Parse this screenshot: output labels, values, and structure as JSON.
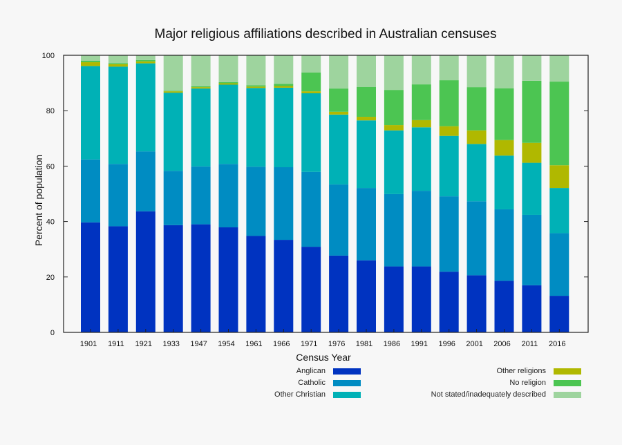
{
  "chart_data": {
    "type": "bar",
    "stacked": true,
    "title": "Major religious affiliations described in Australian censuses",
    "xlabel": "Census Year",
    "ylabel": "Percent of population",
    "ylim": [
      0,
      100
    ],
    "yticks": [
      0,
      20,
      40,
      60,
      80,
      100
    ],
    "grid": false,
    "legend_position": "bottom",
    "categories": [
      "1901",
      "1911",
      "1921",
      "1933",
      "1947",
      "1954",
      "1961",
      "1966",
      "1971",
      "1976",
      "1981",
      "1986",
      "1991",
      "1996",
      "2001",
      "2006",
      "2011",
      "2016"
    ],
    "series": [
      {
        "name": "Anglican",
        "color": "#0033c0",
        "values": [
          39.7,
          38.3,
          43.7,
          38.7,
          39.0,
          37.9,
          34.8,
          33.4,
          30.9,
          27.7,
          26.0,
          23.8,
          23.8,
          21.9,
          20.6,
          18.6,
          17.0,
          13.2
        ]
      },
      {
        "name": "Catholic",
        "color": "#008cc2",
        "values": [
          22.7,
          22.5,
          21.6,
          19.6,
          20.9,
          22.9,
          25.0,
          26.2,
          27.0,
          25.7,
          26.1,
          26.1,
          27.3,
          27.2,
          26.7,
          25.8,
          25.4,
          22.6
        ]
      },
      {
        "name": "Other Christian",
        "color": "#00b1b6",
        "values": [
          33.7,
          35.1,
          31.8,
          28.2,
          28.1,
          28.6,
          28.4,
          28.7,
          28.4,
          25.2,
          24.4,
          23.0,
          22.9,
          21.8,
          20.7,
          19.4,
          18.8,
          16.3
        ]
      },
      {
        "name": "Other religions",
        "color": "#b0b800",
        "values": [
          1.4,
          0.9,
          0.7,
          0.5,
          0.5,
          0.5,
          0.5,
          0.6,
          0.7,
          1.0,
          1.3,
          1.9,
          2.6,
          3.5,
          4.9,
          5.6,
          7.2,
          8.2
        ]
      },
      {
        "name": "No religion",
        "color": "#4cc552",
        "values": [
          0.5,
          0.4,
          0.5,
          0.2,
          0.3,
          0.4,
          0.5,
          0.8,
          6.8,
          8.4,
          10.8,
          12.7,
          12.9,
          16.6,
          15.6,
          18.7,
          22.4,
          30.2
        ]
      },
      {
        "name": "Not stated/inadequately described",
        "color": "#9ed49e",
        "values": [
          2.0,
          2.8,
          1.7,
          12.8,
          11.2,
          9.7,
          10.8,
          10.3,
          6.2,
          12.0,
          11.4,
          12.5,
          10.5,
          9.0,
          11.5,
          11.9,
          9.2,
          9.5
        ]
      }
    ]
  }
}
